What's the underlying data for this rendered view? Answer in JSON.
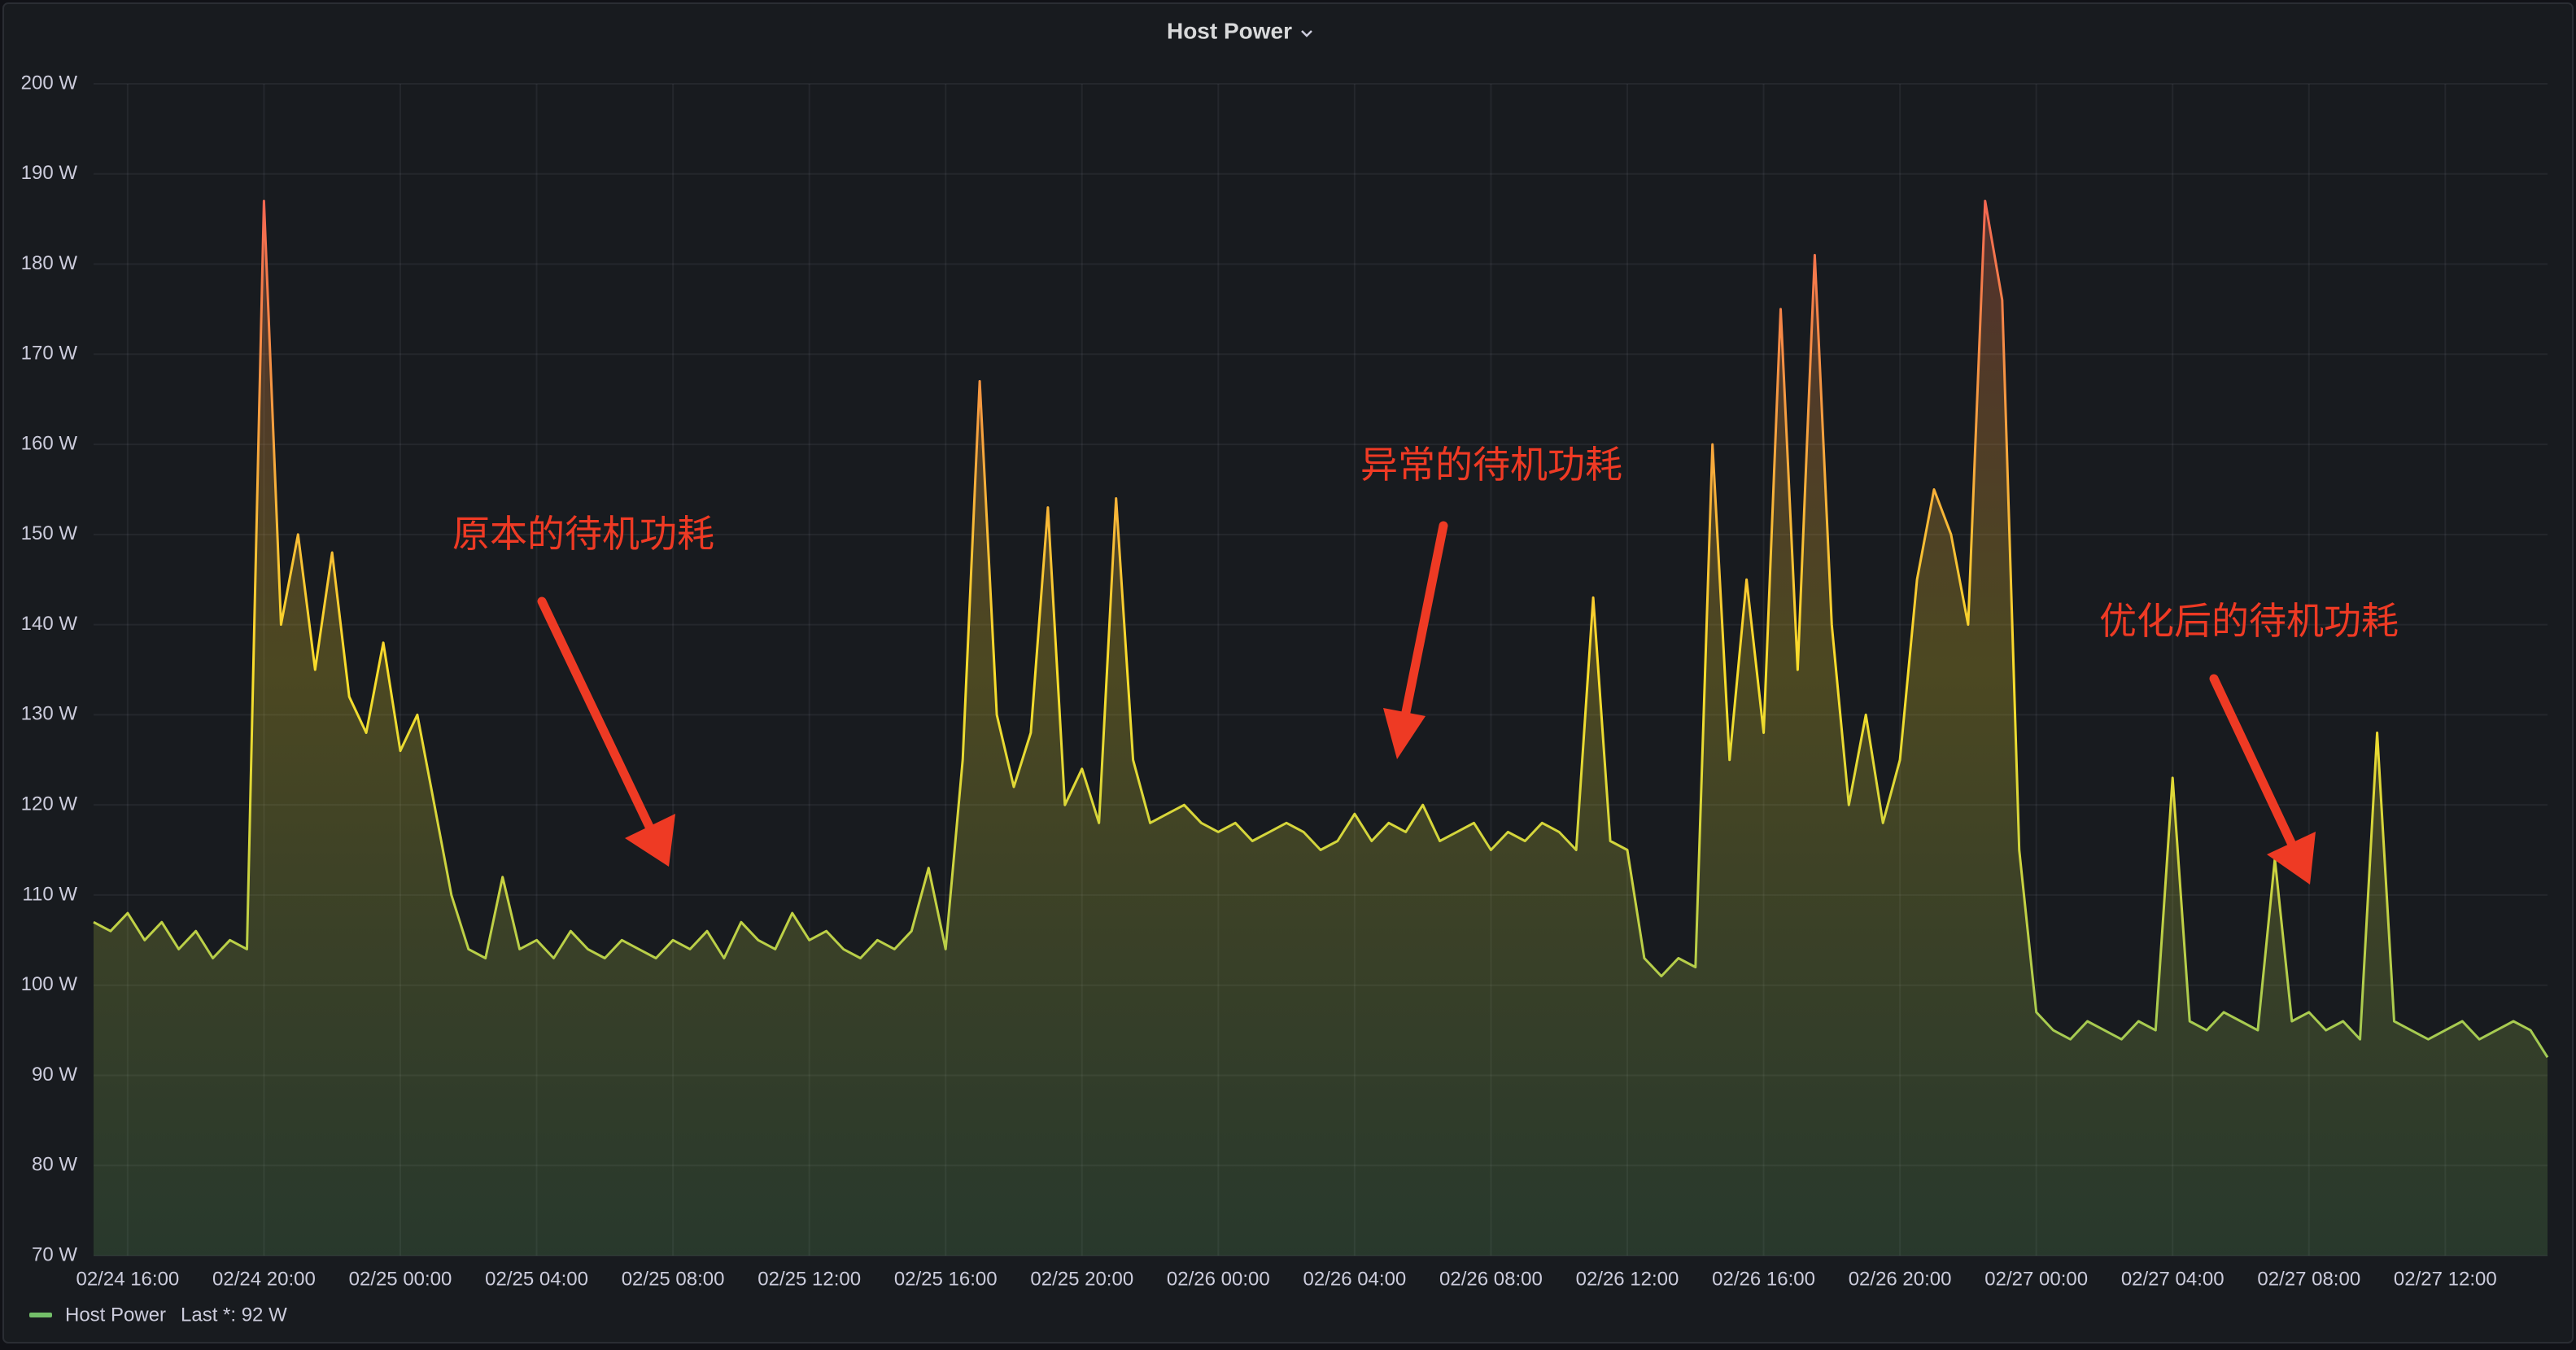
{
  "chart_data": {
    "type": "line",
    "title": "Host Power",
    "x": [
      "02/24 15:00",
      "02/24 15:30",
      "02/24 16:00",
      "02/24 16:30",
      "02/24 17:00",
      "02/24 17:30",
      "02/24 18:00",
      "02/24 18:30",
      "02/24 19:00",
      "02/24 19:30",
      "02/24 20:00",
      "02/24 20:30",
      "02/24 21:00",
      "02/24 21:30",
      "02/24 22:00",
      "02/24 22:30",
      "02/24 23:00",
      "02/24 23:30",
      "02/25 00:00",
      "02/25 00:30",
      "02/25 01:00",
      "02/25 01:30",
      "02/25 02:00",
      "02/25 02:30",
      "02/25 03:00",
      "02/25 03:30",
      "02/25 04:00",
      "02/25 04:30",
      "02/25 05:00",
      "02/25 05:30",
      "02/25 06:00",
      "02/25 06:30",
      "02/25 07:00",
      "02/25 07:30",
      "02/25 08:00",
      "02/25 08:30",
      "02/25 09:00",
      "02/25 09:30",
      "02/25 10:00",
      "02/25 10:30",
      "02/25 11:00",
      "02/25 11:30",
      "02/25 12:00",
      "02/25 12:30",
      "02/25 13:00",
      "02/25 13:30",
      "02/25 14:00",
      "02/25 14:30",
      "02/25 15:00",
      "02/25 15:30",
      "02/25 16:00",
      "02/25 16:30",
      "02/25 17:00",
      "02/25 17:30",
      "02/25 18:00",
      "02/25 18:30",
      "02/25 19:00",
      "02/25 19:30",
      "02/25 20:00",
      "02/25 20:30",
      "02/25 21:00",
      "02/25 21:30",
      "02/25 22:00",
      "02/25 22:30",
      "02/25 23:00",
      "02/25 23:30",
      "02/26 00:00",
      "02/26 00:30",
      "02/26 01:00",
      "02/26 01:30",
      "02/26 02:00",
      "02/26 02:30",
      "02/26 03:00",
      "02/26 03:30",
      "02/26 04:00",
      "02/26 04:30",
      "02/26 05:00",
      "02/26 05:30",
      "02/26 06:00",
      "02/26 06:30",
      "02/26 07:00",
      "02/26 07:30",
      "02/26 08:00",
      "02/26 08:30",
      "02/26 09:00",
      "02/26 09:30",
      "02/26 10:00",
      "02/26 10:30",
      "02/26 11:00",
      "02/26 11:30",
      "02/26 12:00",
      "02/26 12:30",
      "02/26 13:00",
      "02/26 13:30",
      "02/26 14:00",
      "02/26 14:30",
      "02/26 15:00",
      "02/26 15:30",
      "02/26 16:00",
      "02/26 16:30",
      "02/26 17:00",
      "02/26 17:30",
      "02/26 18:00",
      "02/26 18:30",
      "02/26 19:00",
      "02/26 19:30",
      "02/26 20:00",
      "02/26 20:30",
      "02/26 21:00",
      "02/26 21:30",
      "02/26 22:00",
      "02/26 22:30",
      "02/26 23:00",
      "02/26 23:30",
      "02/27 00:00",
      "02/27 00:30",
      "02/27 01:00",
      "02/27 01:30",
      "02/27 02:00",
      "02/27 02:30",
      "02/27 03:00",
      "02/27 03:30",
      "02/27 04:00",
      "02/27 04:30",
      "02/27 05:00",
      "02/27 05:30",
      "02/27 06:00",
      "02/27 06:30",
      "02/27 07:00",
      "02/27 07:30",
      "02/27 08:00",
      "02/27 08:30",
      "02/27 09:00",
      "02/27 09:30",
      "02/27 10:00",
      "02/27 10:30",
      "02/27 11:00",
      "02/27 11:30",
      "02/27 12:00",
      "02/27 12:30",
      "02/27 13:00",
      "02/27 13:30",
      "02/27 14:00",
      "02/27 14:30",
      "02/27 15:00"
    ],
    "series": [
      {
        "name": "Host Power",
        "color": "#73bf69",
        "values": [
          107,
          106,
          108,
          105,
          107,
          104,
          106,
          103,
          105,
          104,
          187,
          140,
          150,
          135,
          148,
          132,
          128,
          138,
          126,
          130,
          120,
          110,
          104,
          103,
          112,
          104,
          105,
          103,
          106,
          104,
          103,
          105,
          104,
          103,
          105,
          104,
          106,
          103,
          107,
          105,
          104,
          108,
          105,
          106,
          104,
          103,
          105,
          104,
          106,
          113,
          104,
          125,
          167,
          130,
          122,
          128,
          153,
          120,
          124,
          118,
          154,
          125,
          118,
          119,
          120,
          118,
          117,
          118,
          116,
          117,
          118,
          117,
          115,
          116,
          119,
          116,
          118,
          117,
          120,
          116,
          117,
          118,
          115,
          117,
          116,
          118,
          117,
          115,
          143,
          116,
          115,
          103,
          101,
          103,
          102,
          160,
          125,
          145,
          128,
          175,
          135,
          181,
          140,
          120,
          130,
          118,
          125,
          145,
          155,
          150,
          140,
          187,
          176,
          115,
          97,
          95,
          94,
          96,
          95,
          94,
          96,
          95,
          123,
          96,
          95,
          97,
          96,
          95,
          114,
          96,
          97,
          95,
          96,
          94,
          128,
          96,
          95,
          94,
          95,
          96,
          94,
          95,
          96,
          95,
          92
        ]
      }
    ],
    "legend_stat": "Last *: 92 W",
    "color_scheme": [
      "#73bf69",
      "#fade2a",
      "#f2495c"
    ],
    "xlim": [
      "02/24 15:00",
      "02/27 15:00"
    ],
    "xticks": [
      "02/24 16:00",
      "02/24 20:00",
      "02/25 00:00",
      "02/25 04:00",
      "02/25 08:00",
      "02/25 12:00",
      "02/25 16:00",
      "02/25 20:00",
      "02/26 00:00",
      "02/26 04:00",
      "02/26 08:00",
      "02/26 12:00",
      "02/26 16:00",
      "02/26 20:00",
      "02/27 00:00",
      "02/27 04:00",
      "02/27 08:00",
      "02/27 12:00"
    ],
    "ylim": [
      70,
      200
    ],
    "yticks": [
      {
        "value": 70,
        "label": "70 W"
      },
      {
        "value": 80,
        "label": "80 W"
      },
      {
        "value": 90,
        "label": "90 W"
      },
      {
        "value": 100,
        "label": "100 W"
      },
      {
        "value": 110,
        "label": "110 W"
      },
      {
        "value": 120,
        "label": "120 W"
      },
      {
        "value": 130,
        "label": "130 W"
      },
      {
        "value": 140,
        "label": "140 W"
      },
      {
        "value": 150,
        "label": "150 W"
      },
      {
        "value": 160,
        "label": "160 W"
      },
      {
        "value": 170,
        "label": "170 W"
      },
      {
        "value": 180,
        "label": "180 W"
      },
      {
        "value": 190,
        "label": "190 W"
      },
      {
        "value": 200,
        "label": "200 W"
      }
    ],
    "grid": true,
    "annotations": [
      "原本的待机功耗",
      "异常的待机功耗",
      "优化后的待机功耗"
    ]
  }
}
